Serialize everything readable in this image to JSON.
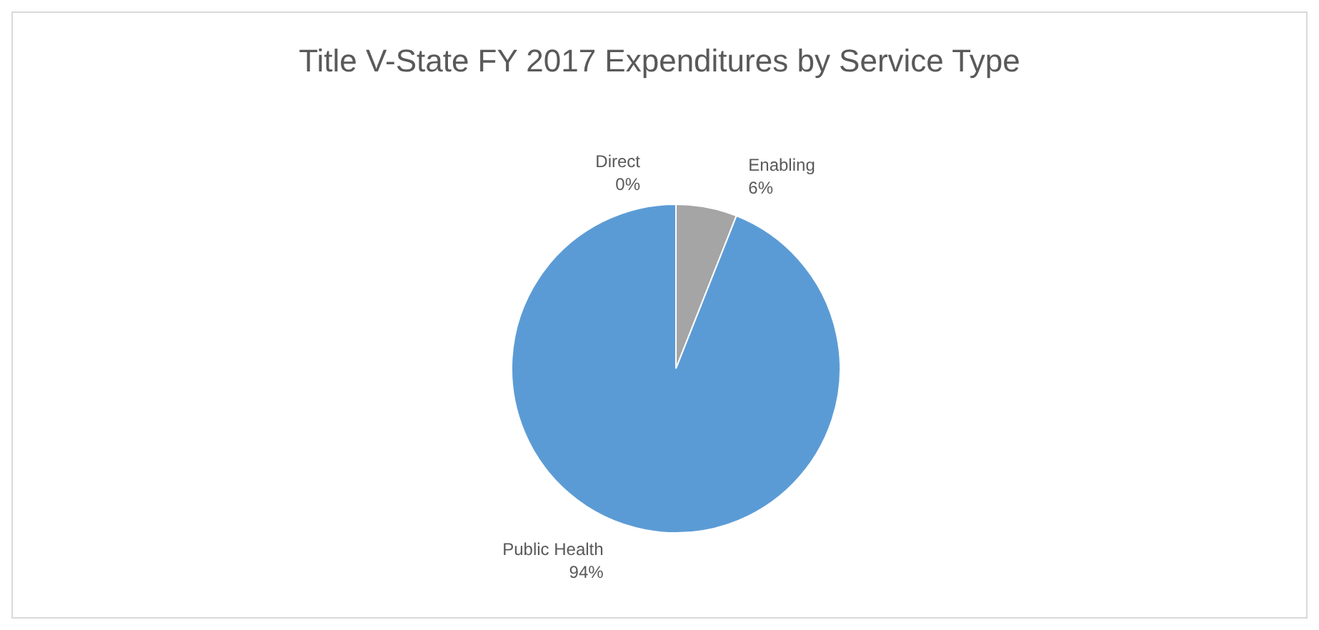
{
  "chart_data": {
    "type": "pie",
    "title": "Title V-State FY 2017 Expenditures  by Service Type",
    "categories": [
      "Direct",
      "Enabling",
      "Public Health"
    ],
    "values": [
      0,
      6,
      94
    ],
    "colors": [
      "#ed7d31",
      "#a5a5a5",
      "#5b9bd5"
    ],
    "value_labels": [
      "0%",
      "6%",
      "94%"
    ]
  }
}
